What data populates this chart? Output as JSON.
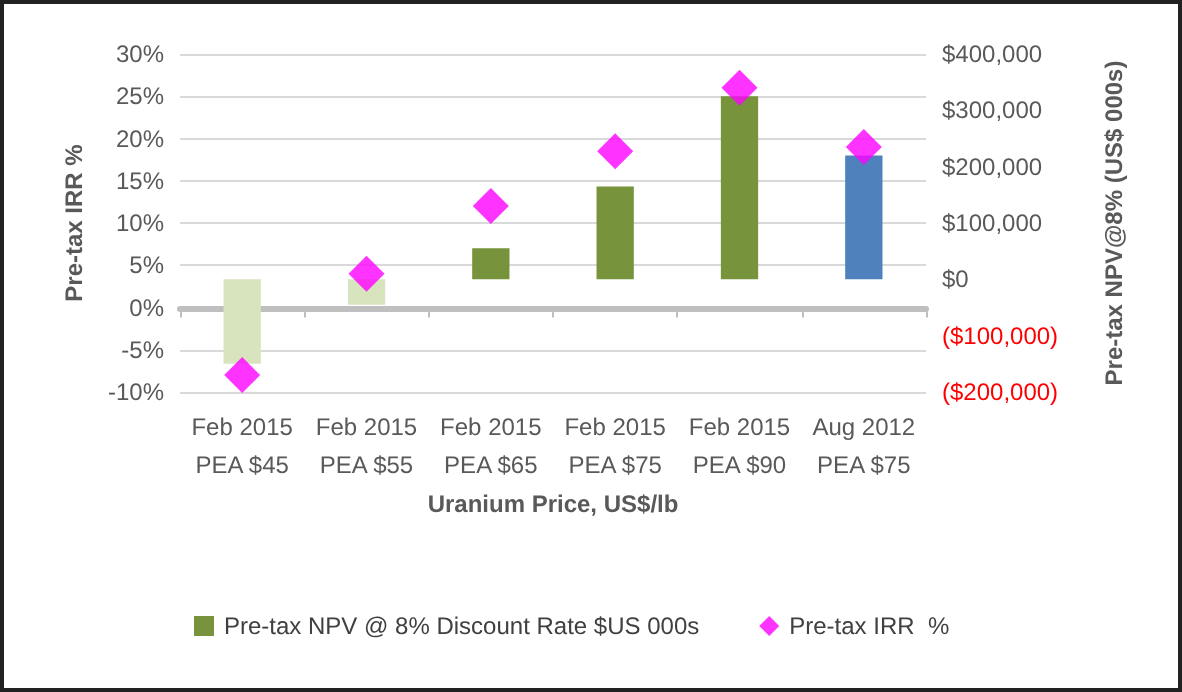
{
  "chart_data": {
    "type": "bar",
    "xlabel": "Uranium Price, US$/lb",
    "ylabel": "Pre-tax IRR %",
    "y2label": "Pre-tax NPV@8% (US$ 000s)",
    "categories": [
      "Feb 2015\nPEA $45",
      "Feb 2015\nPEA $55",
      "Feb 2015\nPEA $65",
      "Feb 2015\nPEA $75",
      "Feb 2015\nPEA $90",
      "Aug 2012\nPEA $75"
    ],
    "series": [
      {
        "name": "Pre-tax NPV @ 8% Discount Rate $US 000s",
        "axis": "y2",
        "color": "#77933c",
        "colors": [
          "#d7e4bd",
          "#d7e4bd",
          "#77933c",
          "#77933c",
          "#77933c",
          "#4f81bd"
        ],
        "values": [
          -150000,
          -45000,
          55000,
          165000,
          325000,
          220000
        ]
      },
      {
        "name": "Pre-tax IRR  %",
        "type": "scatter",
        "color": "#ff00ff",
        "marker": "diamond",
        "values": [
          -8,
          4,
          12,
          18.5,
          26,
          19
        ]
      }
    ],
    "ylim": [
      -10,
      30
    ],
    "yticks": [
      {
        "value": -10,
        "label": "-10%"
      },
      {
        "value": -5,
        "label": "-5%"
      },
      {
        "value": 0,
        "label": "0%"
      },
      {
        "value": 5,
        "label": "5%"
      },
      {
        "value": 10,
        "label": "10%"
      },
      {
        "value": 15,
        "label": "15%"
      },
      {
        "value": 20,
        "label": "20%"
      },
      {
        "value": 25,
        "label": "25%"
      },
      {
        "value": 30,
        "label": "30%"
      }
    ],
    "y2lim": [
      -200000,
      400000
    ],
    "y2ticks": [
      {
        "value": -200000,
        "label": "($200,000)"
      },
      {
        "value": -100000,
        "label": "($100,000)"
      },
      {
        "value": 0,
        "label": "$0"
      },
      {
        "value": 100000,
        "label": "$100,000"
      },
      {
        "value": 200000,
        "label": "$200,000"
      },
      {
        "value": 300000,
        "label": "$300,000"
      },
      {
        "value": 400000,
        "label": "$400,000"
      }
    ],
    "grid": "y",
    "legend": "bottom"
  }
}
